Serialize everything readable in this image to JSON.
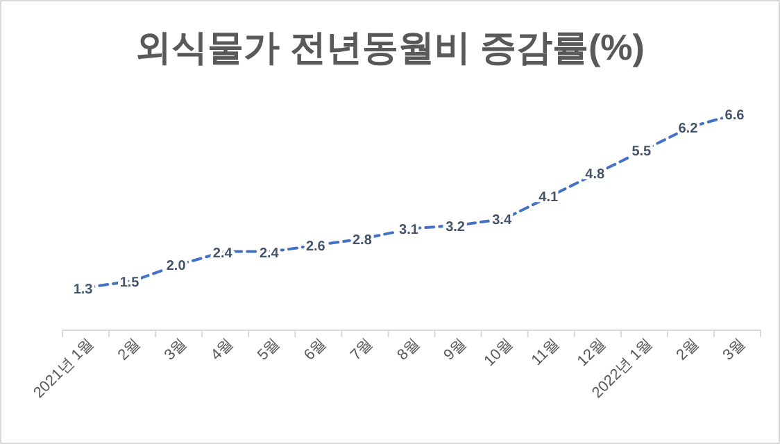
{
  "chart_data": {
    "type": "line",
    "title": "외식물가 전년동월비 증감률(%)",
    "categories": [
      "2021년 1월",
      "2월",
      "3월",
      "4월",
      "5월",
      "6월",
      "7월",
      "8월",
      "9월",
      "10월",
      "11월",
      "12월",
      "2022년 1월",
      "2월",
      "3월"
    ],
    "series": [
      {
        "color": "#4472c4",
        "values": [
          1.3,
          1.5,
          2.0,
          2.4,
          2.4,
          2.6,
          2.8,
          3.1,
          3.2,
          3.4,
          4.1,
          4.8,
          5.5,
          6.2,
          6.6
        ],
        "value_labels": [
          "1.3",
          "1.5",
          "2.0",
          "2.4",
          "2.4",
          "2.6",
          "2.8",
          "3.1",
          "3.2",
          "3.4",
          "4.1",
          "4.8",
          "5.5",
          "6.2",
          "6.6"
        ]
      }
    ],
    "line_style": "dashed",
    "marker": "none"
  }
}
